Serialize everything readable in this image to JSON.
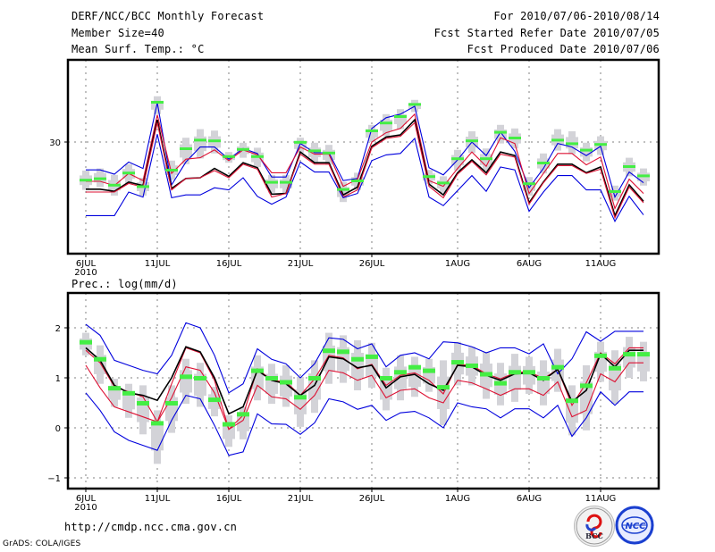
{
  "header": {
    "title": "DERF/NCC/BCC Monthly Forecast",
    "member_size": "Member Size=40",
    "variable": "Mean Surf. Temp.: °C",
    "period": "For 2010/07/06-2010/08/14",
    "start_date": "Fcst Started Refer Date 2010/07/05",
    "produced_date": "Fcst Produced Date 2010/07/06"
  },
  "footer": {
    "url": "http://cmdp.ncc.cma.gov.cn",
    "grads_credit": "GrADS: COLA/IGES",
    "logo_bcc": "BCC",
    "logo_ncc": "NCC"
  },
  "colors": {
    "envelope": "#0000dd",
    "quartile": "#dd1133",
    "median": "#000000",
    "box": "#d3d3d8",
    "mean_marker": "#44ee44",
    "grid": "#808080"
  },
  "chart_data": [
    {
      "type": "line",
      "title": "Mean Surf. Temp.: °C",
      "xlabel": "",
      "ylabel": "°C",
      "x_tick_labels": [
        "6JUL\n2010",
        "11JUL",
        "16JUL",
        "21JUL",
        "26JUL",
        "1AUG",
        "6AUG",
        "11AUG"
      ],
      "x_tick_days": [
        0,
        5,
        10,
        15,
        20,
        26,
        31,
        36
      ],
      "y_ticks": [
        30
      ],
      "ylim": [
        17,
        37
      ],
      "grid": true,
      "days": 40,
      "series": [
        {
          "name": "max",
          "color": "blue",
          "values": [
            26.1,
            26.1,
            25.5,
            27.2,
            26.3,
            35.5,
            24.0,
            27.2,
            29.3,
            29.3,
            27.6,
            29.1,
            28.4,
            25.1,
            25.1,
            29.8,
            28.5,
            28.5,
            24.6,
            24.9,
            31.9,
            33.4,
            33.9,
            35.0,
            26.4,
            25.4,
            27.5,
            30.0,
            28.1,
            31.4,
            28.7,
            23.6,
            26.3,
            29.8,
            29.3,
            28.1,
            29.4,
            22.3,
            25.8,
            24.3
          ]
        },
        {
          "name": "upper_quartile",
          "color": "red",
          "values": [
            24.5,
            24.5,
            23.9,
            25.6,
            24.6,
            33.8,
            25.6,
            27.6,
            27.8,
            28.9,
            27.4,
            28.9,
            28.2,
            25.7,
            25.7,
            29.3,
            28.3,
            28.3,
            23.8,
            24.8,
            30.0,
            31.3,
            31.9,
            33.9,
            24.6,
            23.8,
            26.3,
            28.6,
            26.6,
            30.6,
            29.8,
            22.8,
            25.6,
            28.4,
            28.4,
            26.8,
            27.9,
            20.7,
            24.8,
            22.8
          ]
        },
        {
          "name": "median",
          "color": "black",
          "values": [
            23.4,
            23.4,
            23.1,
            24.4,
            23.9,
            33.1,
            23.5,
            24.9,
            25.0,
            26.3,
            25.2,
            27.1,
            26.4,
            22.7,
            22.8,
            28.6,
            27.1,
            27.1,
            22.6,
            23.7,
            29.4,
            30.7,
            31.0,
            33.1,
            24.1,
            22.6,
            25.7,
            27.5,
            25.7,
            28.6,
            28.1,
            21.5,
            24.4,
            26.9,
            26.9,
            25.7,
            26.5,
            19.7,
            24.0,
            21.7
          ]
        },
        {
          "name": "lower_quartile",
          "color": "red",
          "values": [
            23.0,
            23.0,
            23.0,
            24.2,
            23.7,
            32.7,
            23.3,
            24.9,
            25.0,
            26.0,
            25.0,
            26.9,
            26.2,
            22.3,
            22.8,
            28.3,
            26.9,
            26.9,
            22.3,
            23.3,
            29.2,
            30.5,
            30.8,
            32.7,
            23.8,
            22.2,
            25.5,
            27.3,
            25.4,
            28.3,
            27.9,
            21.3,
            24.3,
            26.7,
            26.7,
            25.6,
            26.2,
            19.4,
            23.7,
            21.5
          ]
        },
        {
          "name": "min",
          "color": "blue",
          "values": [
            19.7,
            19.7,
            19.7,
            23.0,
            22.3,
            31.1,
            22.2,
            22.6,
            22.6,
            23.6,
            23.3,
            25.0,
            22.4,
            21.3,
            22.3,
            27.2,
            25.8,
            25.8,
            22.2,
            22.8,
            27.4,
            28.2,
            28.4,
            30.5,
            22.3,
            21.1,
            23.2,
            25.3,
            23.1,
            26.5,
            26.1,
            20.3,
            23.0,
            25.3,
            25.3,
            23.3,
            23.3,
            18.9,
            22.4,
            19.8
          ]
        },
        {
          "name": "ensemble_mean",
          "color": "green",
          "marker": "bar",
          "values": [
            24.6,
            24.8,
            23.9,
            25.6,
            23.7,
            35.5,
            26.0,
            29.0,
            30.2,
            30.1,
            27.9,
            28.9,
            27.9,
            24.3,
            24.3,
            29.9,
            28.7,
            28.4,
            23.3,
            24.5,
            31.5,
            32.6,
            33.5,
            35.2,
            25.1,
            24.2,
            27.6,
            30.1,
            27.6,
            31.3,
            30.5,
            24.1,
            27.0,
            30.2,
            29.7,
            28.8,
            29.6,
            23.0,
            26.5,
            25.2
          ]
        }
      ],
      "boxes": {
        "name": "ensemble_spread",
        "low": [
          23.3,
          23.7,
          22.5,
          24.2,
          22.5,
          33.9,
          24.7,
          26.9,
          27.7,
          28.4,
          27.1,
          27.8,
          26.5,
          22.9,
          22.9,
          28.5,
          27.2,
          26.8,
          21.6,
          23.3,
          30.0,
          30.8,
          31.8,
          34.2,
          24.1,
          22.9,
          26.0,
          28.5,
          26.0,
          29.8,
          29.1,
          22.5,
          25.6,
          28.8,
          28.3,
          27.3,
          28.2,
          21.8,
          25.2,
          23.9
        ],
        "high": [
          26.0,
          26.3,
          25.4,
          26.9,
          25.0,
          36.4,
          27.4,
          30.6,
          31.8,
          31.6,
          28.6,
          29.9,
          29.2,
          25.4,
          25.4,
          30.6,
          29.9,
          29.6,
          24.4,
          25.7,
          32.4,
          33.9,
          34.6,
          35.9,
          26.1,
          25.2,
          28.9,
          31.5,
          29.1,
          32.4,
          31.9,
          25.1,
          28.4,
          31.8,
          31.5,
          29.9,
          30.8,
          23.9,
          27.8,
          26.3
        ]
      }
    },
    {
      "type": "line",
      "title": "Prec.: log(mm/d)",
      "xlabel": "",
      "ylabel": "log(mm/d)",
      "x_tick_labels": [
        "6JUL\n2010",
        "11JUL",
        "16JUL",
        "21JUL",
        "26JUL",
        "1AUG",
        "6AUG",
        "11AUG"
      ],
      "x_tick_days": [
        0,
        5,
        10,
        15,
        20,
        26,
        31,
        36
      ],
      "y_ticks": [
        -1,
        0,
        1,
        2
      ],
      "ylim": [
        -1.2,
        2.7
      ],
      "grid": true,
      "days": 40,
      "series": [
        {
          "name": "max",
          "color": "blue",
          "values": [
            2.07,
            1.85,
            1.35,
            1.25,
            1.15,
            1.08,
            1.45,
            2.1,
            2.0,
            1.45,
            0.7,
            0.88,
            1.58,
            1.37,
            1.28,
            1.0,
            1.28,
            1.8,
            1.77,
            1.58,
            1.68,
            1.22,
            1.45,
            1.5,
            1.38,
            1.72,
            1.7,
            1.62,
            1.5,
            1.6,
            1.6,
            1.48,
            1.68,
            1.08,
            1.38,
            1.92,
            1.73,
            1.93,
            1.93,
            1.93
          ]
        },
        {
          "name": "upper_quartile",
          "color": "red",
          "values": [
            1.55,
            1.3,
            0.82,
            0.72,
            0.62,
            0.12,
            0.88,
            1.6,
            1.5,
            0.95,
            -0.03,
            0.25,
            1.18,
            0.95,
            0.92,
            0.65,
            0.98,
            1.45,
            1.4,
            1.18,
            1.27,
            0.85,
            1.05,
            1.1,
            0.95,
            0.68,
            1.27,
            1.25,
            1.08,
            0.98,
            1.1,
            1.13,
            0.98,
            1.17,
            0.45,
            0.9,
            1.5,
            1.28,
            1.6,
            1.6
          ]
        },
        {
          "name": "median",
          "color": "black",
          "values": [
            1.6,
            1.35,
            0.85,
            0.7,
            0.65,
            0.55,
            1.0,
            1.62,
            1.52,
            1.0,
            0.28,
            0.42,
            1.15,
            0.95,
            0.88,
            0.65,
            0.85,
            1.42,
            1.38,
            1.2,
            1.25,
            0.8,
            1.02,
            1.07,
            0.88,
            0.75,
            1.25,
            1.22,
            1.05,
            0.95,
            1.08,
            1.1,
            0.95,
            1.17,
            0.52,
            0.75,
            1.48,
            1.22,
            1.55,
            1.55
          ]
        },
        {
          "name": "lower_quartile",
          "color": "red",
          "values": [
            1.25,
            0.8,
            0.42,
            0.32,
            0.22,
            0.12,
            0.6,
            1.22,
            1.15,
            0.7,
            -0.03,
            0.15,
            0.85,
            0.62,
            0.58,
            0.37,
            0.65,
            1.15,
            1.1,
            0.95,
            1.05,
            0.6,
            0.75,
            0.78,
            0.6,
            0.5,
            0.95,
            0.9,
            0.78,
            0.65,
            0.78,
            0.78,
            0.65,
            0.92,
            0.22,
            0.35,
            1.08,
            0.92,
            1.3,
            1.3
          ]
        },
        {
          "name": "min",
          "color": "blue",
          "values": [
            0.7,
            0.35,
            -0.08,
            -0.25,
            -0.35,
            -0.45,
            0.15,
            0.65,
            0.58,
            0.05,
            -0.55,
            -0.48,
            0.28,
            0.08,
            0.07,
            -0.13,
            0.1,
            0.58,
            0.52,
            0.37,
            0.45,
            0.15,
            0.3,
            0.33,
            0.2,
            0.0,
            0.5,
            0.42,
            0.38,
            0.2,
            0.38,
            0.38,
            0.2,
            0.45,
            -0.17,
            0.2,
            0.72,
            0.45,
            0.72,
            0.72
          ]
        },
        {
          "name": "ensemble_mean",
          "color": "green",
          "marker": "bar",
          "values": [
            1.72,
            1.38,
            0.8,
            0.7,
            0.5,
            0.1,
            0.5,
            1.03,
            1.0,
            0.57,
            0.08,
            0.28,
            1.15,
            1.0,
            0.92,
            0.62,
            1.0,
            1.55,
            1.53,
            1.38,
            1.43,
            1.0,
            1.12,
            1.22,
            1.15,
            0.82,
            1.32,
            1.25,
            1.08,
            0.9,
            1.12,
            1.12,
            1.0,
            1.22,
            0.55,
            0.85,
            1.45,
            1.2,
            1.48,
            1.48
          ]
        }
      ],
      "boxes": {
        "name": "ensemble_spread",
        "low": [
          1.45,
          0.88,
          0.42,
          0.2,
          -0.13,
          -0.72,
          -0.1,
          0.48,
          0.42,
          0.23,
          -0.38,
          -0.23,
          0.55,
          0.48,
          0.42,
          0.02,
          0.3,
          0.88,
          0.9,
          0.75,
          0.8,
          0.35,
          0.55,
          0.62,
          0.72,
          0.05,
          0.85,
          0.85,
          0.58,
          0.45,
          0.52,
          0.68,
          0.45,
          0.72,
          -0.15,
          -0.05,
          0.92,
          0.48,
          1.0,
          0.93
        ],
        "high": [
          1.9,
          1.65,
          0.98,
          0.88,
          0.85,
          0.35,
          0.85,
          1.38,
          1.3,
          0.82,
          0.25,
          0.42,
          1.45,
          1.28,
          1.25,
          1.02,
          1.35,
          1.9,
          1.85,
          1.75,
          1.7,
          1.2,
          1.45,
          1.42,
          1.38,
          1.35,
          1.72,
          1.62,
          1.52,
          1.3,
          1.48,
          1.42,
          1.35,
          1.58,
          0.85,
          1.25,
          1.72,
          1.55,
          1.82,
          1.72
        ]
      }
    }
  ]
}
